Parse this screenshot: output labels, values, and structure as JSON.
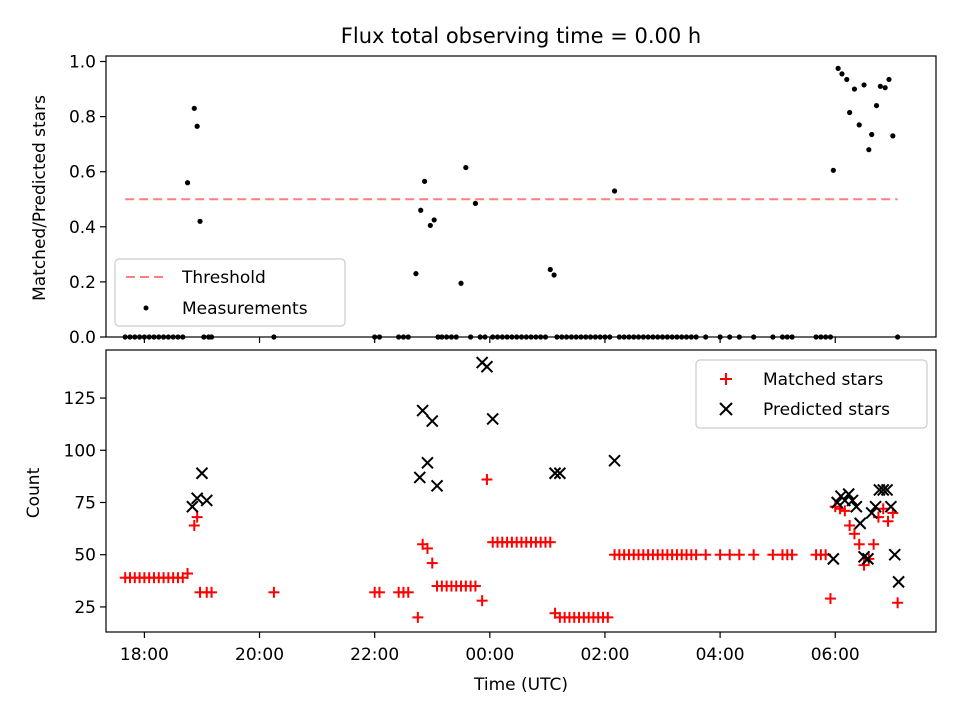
{
  "chart_data": [
    {
      "type": "scatter",
      "title": "Flux total observing time = 0.00 h",
      "xlabel": "",
      "ylabel": "Matched/Predicted stars",
      "xlim": [
        "17:20",
        "07:45"
      ],
      "ylim": [
        0,
        1.02
      ],
      "yticks": [
        "0.0",
        "0.2",
        "0.4",
        "0.6",
        "0.8",
        "1.0"
      ],
      "legend_position": "lower-left",
      "threshold": {
        "name": "Threshold",
        "value": 0.5,
        "x": [
          "17:40",
          "07:05"
        ],
        "color": "#ff7f7f"
      },
      "series": [
        {
          "name": "Measurements",
          "color": "#000000",
          "x": [
            "17:40",
            "17:45",
            "17:50",
            "17:55",
            "18:00",
            "18:05",
            "18:10",
            "18:15",
            "18:20",
            "18:25",
            "18:30",
            "18:35",
            "18:40",
            "18:45",
            "18:52",
            "18:55",
            "18:58",
            "19:02",
            "19:07",
            "19:10",
            "20:15",
            "22:00",
            "22:05",
            "22:25",
            "22:30",
            "22:35",
            "22:43",
            "22:48",
            "22:52",
            "22:58",
            "23:02",
            "23:06",
            "23:10",
            "23:15",
            "23:20",
            "23:25",
            "23:30",
            "23:35",
            "23:40",
            "23:45",
            "23:50",
            "23:55",
            "00:03",
            "00:08",
            "00:13",
            "00:18",
            "00:23",
            "00:28",
            "00:33",
            "00:38",
            "00:43",
            "00:48",
            "00:53",
            "00:58",
            "01:03",
            "01:07",
            "01:10",
            "01:15",
            "01:20",
            "01:25",
            "01:30",
            "01:35",
            "01:40",
            "01:45",
            "01:50",
            "01:55",
            "02:00",
            "02:05",
            "02:10",
            "02:15",
            "02:20",
            "02:25",
            "02:30",
            "02:35",
            "02:40",
            "02:45",
            "02:50",
            "02:55",
            "03:00",
            "03:05",
            "03:10",
            "03:15",
            "03:20",
            "03:25",
            "03:30",
            "03:35",
            "03:45",
            "04:00",
            "04:10",
            "04:20",
            "04:35",
            "04:55",
            "05:05",
            "05:10",
            "05:15",
            "05:40",
            "05:45",
            "05:50",
            "05:55",
            "05:58",
            "06:03",
            "06:07",
            "06:12",
            "06:15",
            "06:20",
            "06:25",
            "06:30",
            "06:35",
            "06:38",
            "06:43",
            "06:47",
            "06:52",
            "06:56",
            "07:00",
            "07:05"
          ],
          "y": [
            0,
            0,
            0,
            0,
            0,
            0,
            0,
            0,
            0,
            0,
            0,
            0,
            0,
            0.56,
            0.83,
            0.765,
            0.42,
            0,
            0,
            0,
            0,
            0,
            0,
            0,
            0,
            0,
            0.23,
            0.46,
            0.565,
            0.405,
            0.425,
            0,
            0,
            0,
            0,
            0,
            0.195,
            0.615,
            0,
            0.485,
            0,
            0,
            0,
            0,
            0,
            0,
            0,
            0,
            0,
            0,
            0,
            0,
            0,
            0,
            0.245,
            0.225,
            0,
            0,
            0,
            0,
            0,
            0,
            0,
            0,
            0,
            0,
            0,
            0,
            0.53,
            0,
            0,
            0,
            0,
            0,
            0,
            0,
            0,
            0,
            0,
            0,
            0,
            0,
            0,
            0,
            0,
            0,
            0,
            0,
            0,
            0,
            0,
            0,
            0,
            0,
            0,
            0,
            0,
            0,
            0,
            0.605,
            0.975,
            0.955,
            0.935,
            0.815,
            0.9,
            0.77,
            0.915,
            0.68,
            0.735,
            0.84,
            0.91,
            0.905,
            0.935,
            0.73,
            0
          ]
        }
      ]
    },
    {
      "type": "scatter",
      "title": "",
      "xlabel": "Time (UTC)",
      "ylabel": "Count",
      "xlim": [
        "17:20",
        "07:45"
      ],
      "ylim": [
        13,
        148
      ],
      "xticks": [
        "18:00",
        "20:00",
        "22:00",
        "00:00",
        "02:00",
        "04:00",
        "06:00"
      ],
      "yticks": [
        "25",
        "50",
        "75",
        "100",
        "125"
      ],
      "legend_position": "top-right",
      "series": [
        {
          "name": "Matched stars",
          "color": "#ff0000",
          "marker": "plus",
          "x": [
            "17:40",
            "17:45",
            "17:50",
            "17:55",
            "18:00",
            "18:05",
            "18:10",
            "18:15",
            "18:20",
            "18:25",
            "18:30",
            "18:35",
            "18:40",
            "18:45",
            "18:52",
            "18:55",
            "18:58",
            "19:05",
            "19:10",
            "20:15",
            "22:00",
            "22:05",
            "22:25",
            "22:30",
            "22:35",
            "22:45",
            "22:50",
            "22:55",
            "23:00",
            "23:05",
            "23:10",
            "23:15",
            "23:20",
            "23:25",
            "23:30",
            "23:35",
            "23:40",
            "23:45",
            "23:52",
            "23:57",
            "00:03",
            "00:08",
            "00:13",
            "00:18",
            "00:23",
            "00:28",
            "00:33",
            "00:38",
            "00:43",
            "00:48",
            "00:53",
            "00:58",
            "01:03",
            "01:08",
            "01:13",
            "01:18",
            "01:23",
            "01:28",
            "01:33",
            "01:38",
            "01:43",
            "01:48",
            "01:53",
            "01:58",
            "02:03",
            "02:10",
            "02:15",
            "02:20",
            "02:25",
            "02:30",
            "02:35",
            "02:40",
            "02:45",
            "02:50",
            "02:55",
            "03:00",
            "03:05",
            "03:10",
            "03:15",
            "03:20",
            "03:25",
            "03:30",
            "03:35",
            "03:45",
            "04:00",
            "04:10",
            "04:20",
            "04:35",
            "04:55",
            "05:05",
            "05:10",
            "05:15",
            "05:40",
            "05:45",
            "05:50",
            "05:55",
            "06:00",
            "06:05",
            "06:10",
            "06:15",
            "06:20",
            "06:25",
            "06:30",
            "06:35",
            "06:40",
            "06:45",
            "06:50",
            "06:55",
            "07:00",
            "07:05"
          ],
          "y": [
            39,
            39,
            39,
            39,
            39,
            39,
            39,
            39,
            39,
            39,
            39,
            39,
            39,
            41,
            64,
            68,
            32,
            32,
            32,
            32,
            32,
            32,
            32,
            32,
            32,
            20,
            55,
            53,
            46,
            35,
            35,
            35,
            35,
            35,
            35,
            35,
            35,
            35,
            28,
            86,
            56,
            56,
            56,
            56,
            56,
            56,
            56,
            56,
            56,
            56,
            56,
            56,
            56,
            22,
            20,
            20,
            20,
            20,
            20,
            20,
            20,
            20,
            20,
            20,
            20,
            50,
            50,
            50,
            50,
            50,
            50,
            50,
            50,
            50,
            50,
            50,
            50,
            50,
            50,
            50,
            50,
            50,
            50,
            50,
            50,
            50,
            50,
            50,
            50,
            50,
            50,
            50,
            50,
            50,
            50,
            29,
            73,
            72,
            71,
            64,
            60,
            55,
            45,
            48,
            55,
            68,
            72,
            66,
            70,
            27
          ]
        },
        {
          "name": "Predicted stars",
          "color": "#000000",
          "marker": "x",
          "x": [
            "18:50",
            "18:55",
            "19:00",
            "19:05",
            "22:47",
            "22:50",
            "22:55",
            "23:00",
            "23:05",
            "23:52",
            "23:57",
            "00:03",
            "01:08",
            "01:13",
            "02:10",
            "05:58",
            "06:02",
            "06:06",
            "06:10",
            "06:14",
            "06:18",
            "06:22",
            "06:26",
            "06:30",
            "06:34",
            "06:38",
            "06:42",
            "06:46",
            "06:50",
            "06:54",
            "06:58",
            "07:02",
            "07:06"
          ],
          "y": [
            73,
            77,
            89,
            76,
            87,
            119,
            94,
            114,
            83,
            142,
            140,
            115,
            89,
            89,
            95,
            48,
            75,
            78,
            76,
            79,
            76,
            73,
            65,
            49,
            48,
            70,
            73,
            81,
            81,
            81,
            73,
            50,
            37
          ]
        }
      ]
    }
  ]
}
